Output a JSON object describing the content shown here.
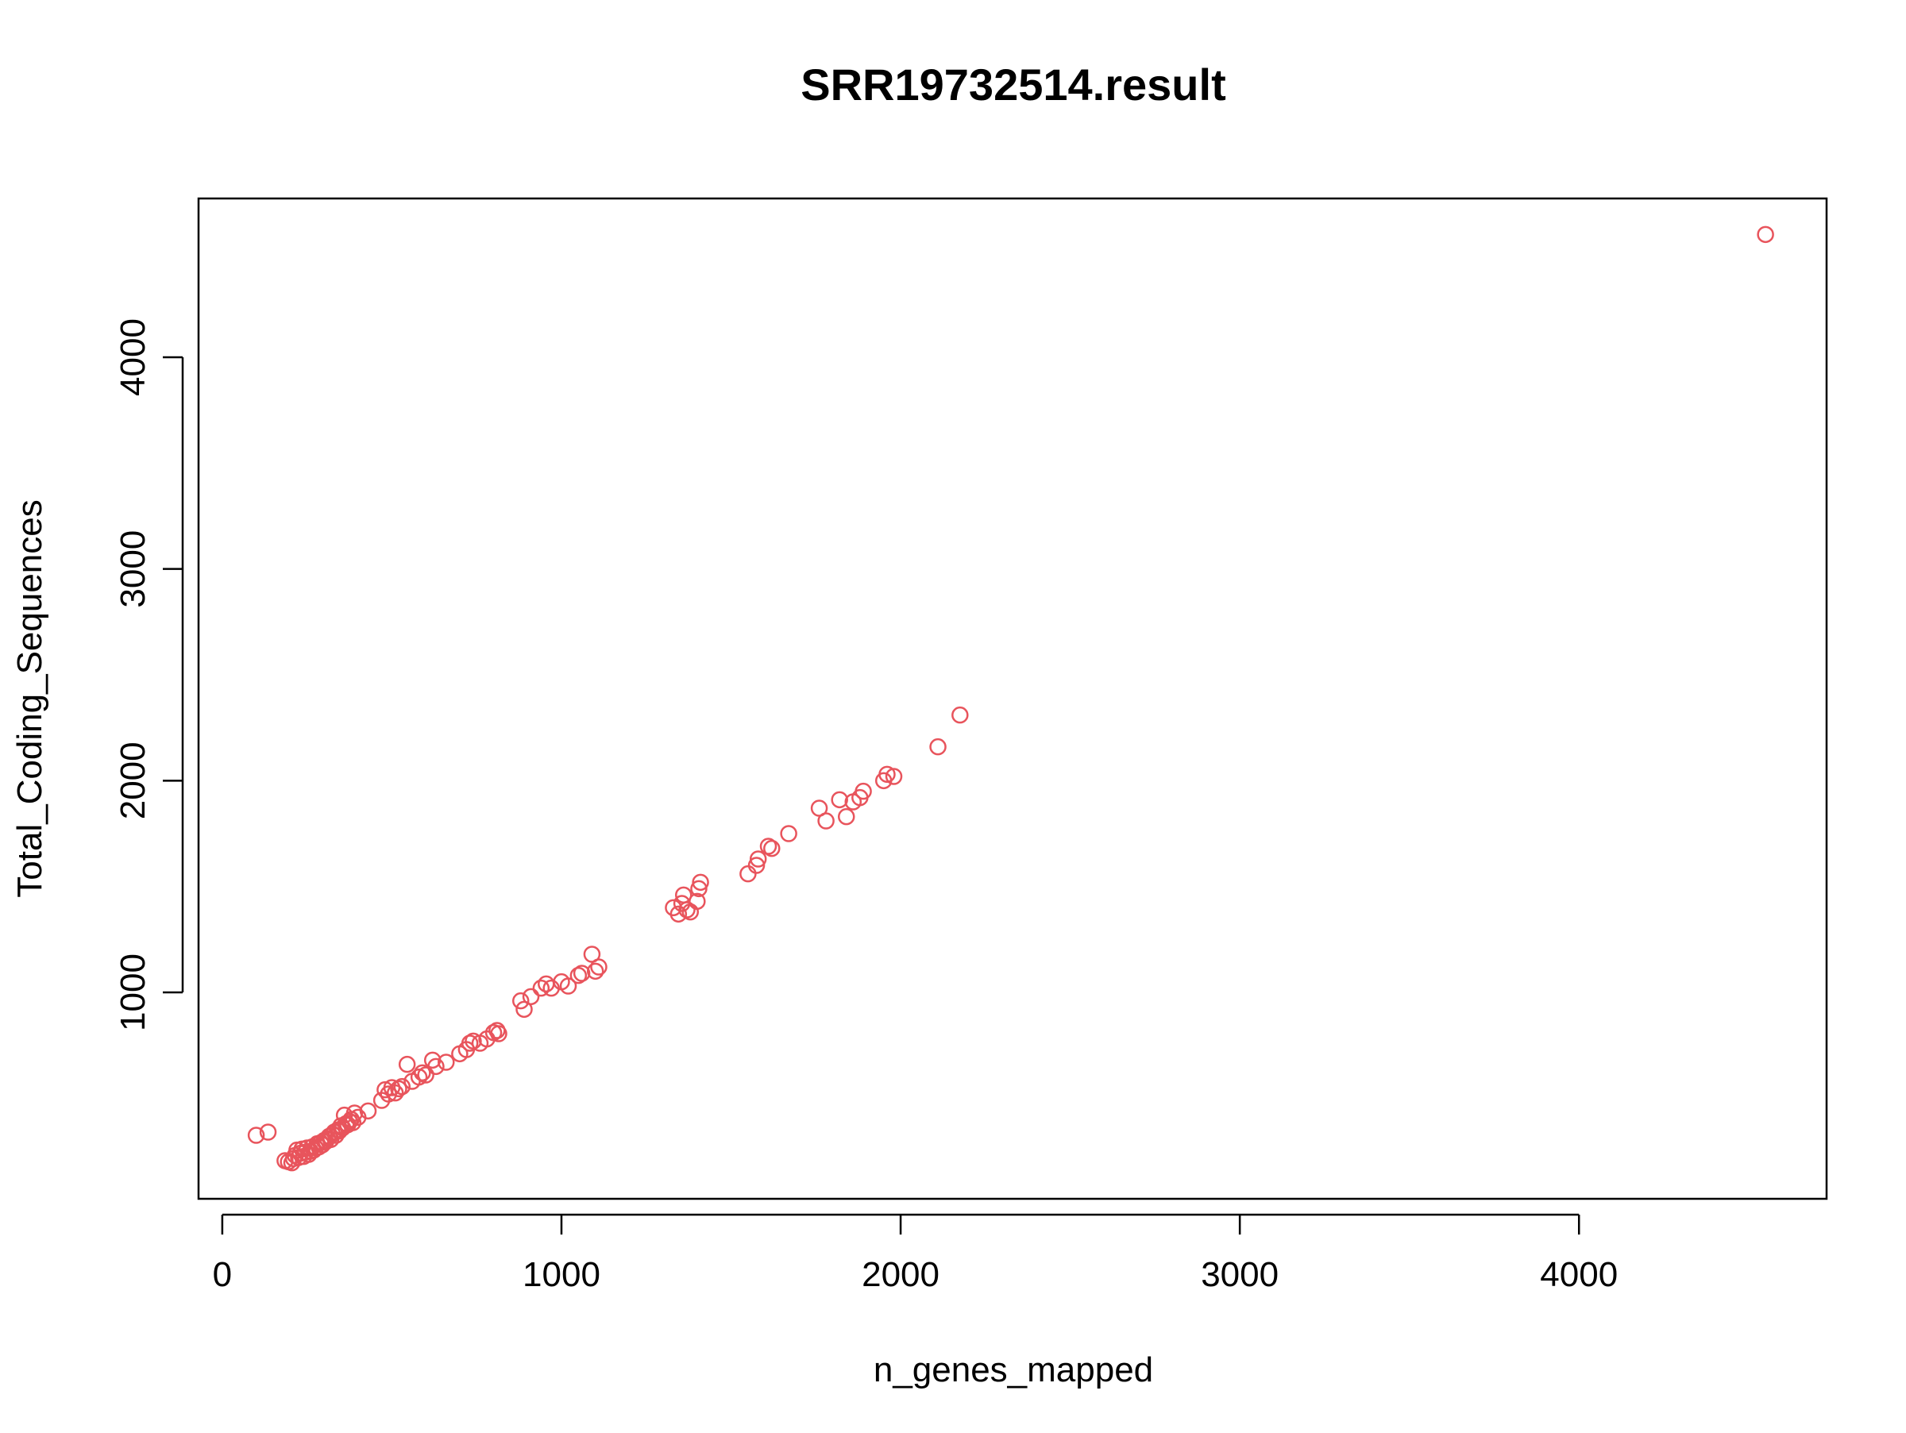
{
  "chart_data": {
    "type": "scatter",
    "title": "SRR19732514.result",
    "xlabel": "n_genes_mapped",
    "ylabel": "Total_Coding_Sequences",
    "xlim": [
      -70,
      4730
    ],
    "ylim": [
      25,
      4750
    ],
    "x_ticks": [
      0,
      1000,
      2000,
      3000,
      4000
    ],
    "x_tick_labels": [
      "0",
      "1000",
      "2000",
      "3000",
      "4000"
    ],
    "y_ticks": [
      1000,
      2000,
      3000,
      4000
    ],
    "y_tick_labels": [
      "1000",
      "2000",
      "3000",
      "4000"
    ],
    "grid": false,
    "legend": "none",
    "marker": "open-circle",
    "point_color": "#e8545c",
    "series": [
      {
        "points": [
          [
            100,
            325
          ],
          [
            135,
            340
          ],
          [
            185,
            205
          ],
          [
            195,
            200
          ],
          [
            205,
            195
          ],
          [
            210,
            215
          ],
          [
            215,
            230
          ],
          [
            220,
            255
          ],
          [
            225,
            220
          ],
          [
            230,
            240
          ],
          [
            235,
            260
          ],
          [
            240,
            225
          ],
          [
            245,
            245
          ],
          [
            250,
            265
          ],
          [
            255,
            235
          ],
          [
            260,
            250
          ],
          [
            265,
            270
          ],
          [
            270,
            255
          ],
          [
            275,
            265
          ],
          [
            280,
            285
          ],
          [
            285,
            270
          ],
          [
            290,
            290
          ],
          [
            295,
            280
          ],
          [
            300,
            300
          ],
          [
            305,
            295
          ],
          [
            310,
            310
          ],
          [
            315,
            320
          ],
          [
            320,
            305
          ],
          [
            325,
            330
          ],
          [
            330,
            340
          ],
          [
            335,
            325
          ],
          [
            340,
            350
          ],
          [
            345,
            345
          ],
          [
            350,
            370
          ],
          [
            355,
            360
          ],
          [
            360,
            420
          ],
          [
            365,
            380
          ],
          [
            370,
            375
          ],
          [
            375,
            390
          ],
          [
            380,
            400
          ],
          [
            385,
            385
          ],
          [
            390,
            430
          ],
          [
            400,
            410
          ],
          [
            430,
            440
          ],
          [
            470,
            490
          ],
          [
            480,
            540
          ],
          [
            490,
            520
          ],
          [
            500,
            550
          ],
          [
            510,
            525
          ],
          [
            520,
            545
          ],
          [
            530,
            555
          ],
          [
            545,
            660
          ],
          [
            560,
            580
          ],
          [
            580,
            600
          ],
          [
            590,
            620
          ],
          [
            600,
            610
          ],
          [
            620,
            680
          ],
          [
            630,
            650
          ],
          [
            660,
            670
          ],
          [
            700,
            710
          ],
          [
            720,
            730
          ],
          [
            730,
            760
          ],
          [
            740,
            770
          ],
          [
            760,
            760
          ],
          [
            780,
            780
          ],
          [
            800,
            810
          ],
          [
            810,
            820
          ],
          [
            815,
            805
          ],
          [
            880,
            960
          ],
          [
            890,
            920
          ],
          [
            910,
            980
          ],
          [
            940,
            1020
          ],
          [
            955,
            1040
          ],
          [
            970,
            1020
          ],
          [
            1000,
            1050
          ],
          [
            1020,
            1030
          ],
          [
            1050,
            1080
          ],
          [
            1060,
            1090
          ],
          [
            1090,
            1180
          ],
          [
            1100,
            1100
          ],
          [
            1110,
            1120
          ],
          [
            1330,
            1400
          ],
          [
            1345,
            1370
          ],
          [
            1355,
            1420
          ],
          [
            1360,
            1460
          ],
          [
            1370,
            1390
          ],
          [
            1380,
            1380
          ],
          [
            1400,
            1430
          ],
          [
            1405,
            1490
          ],
          [
            1410,
            1520
          ],
          [
            1550,
            1560
          ],
          [
            1575,
            1600
          ],
          [
            1580,
            1630
          ],
          [
            1610,
            1690
          ],
          [
            1620,
            1680
          ],
          [
            1670,
            1750
          ],
          [
            1760,
            1870
          ],
          [
            1780,
            1810
          ],
          [
            1820,
            1910
          ],
          [
            1840,
            1830
          ],
          [
            1860,
            1900
          ],
          [
            1880,
            1920
          ],
          [
            1890,
            1950
          ],
          [
            1950,
            2000
          ],
          [
            1960,
            2030
          ],
          [
            1980,
            2020
          ],
          [
            2110,
            2160
          ],
          [
            2175,
            2310
          ],
          [
            4550,
            4580
          ]
        ]
      }
    ]
  }
}
